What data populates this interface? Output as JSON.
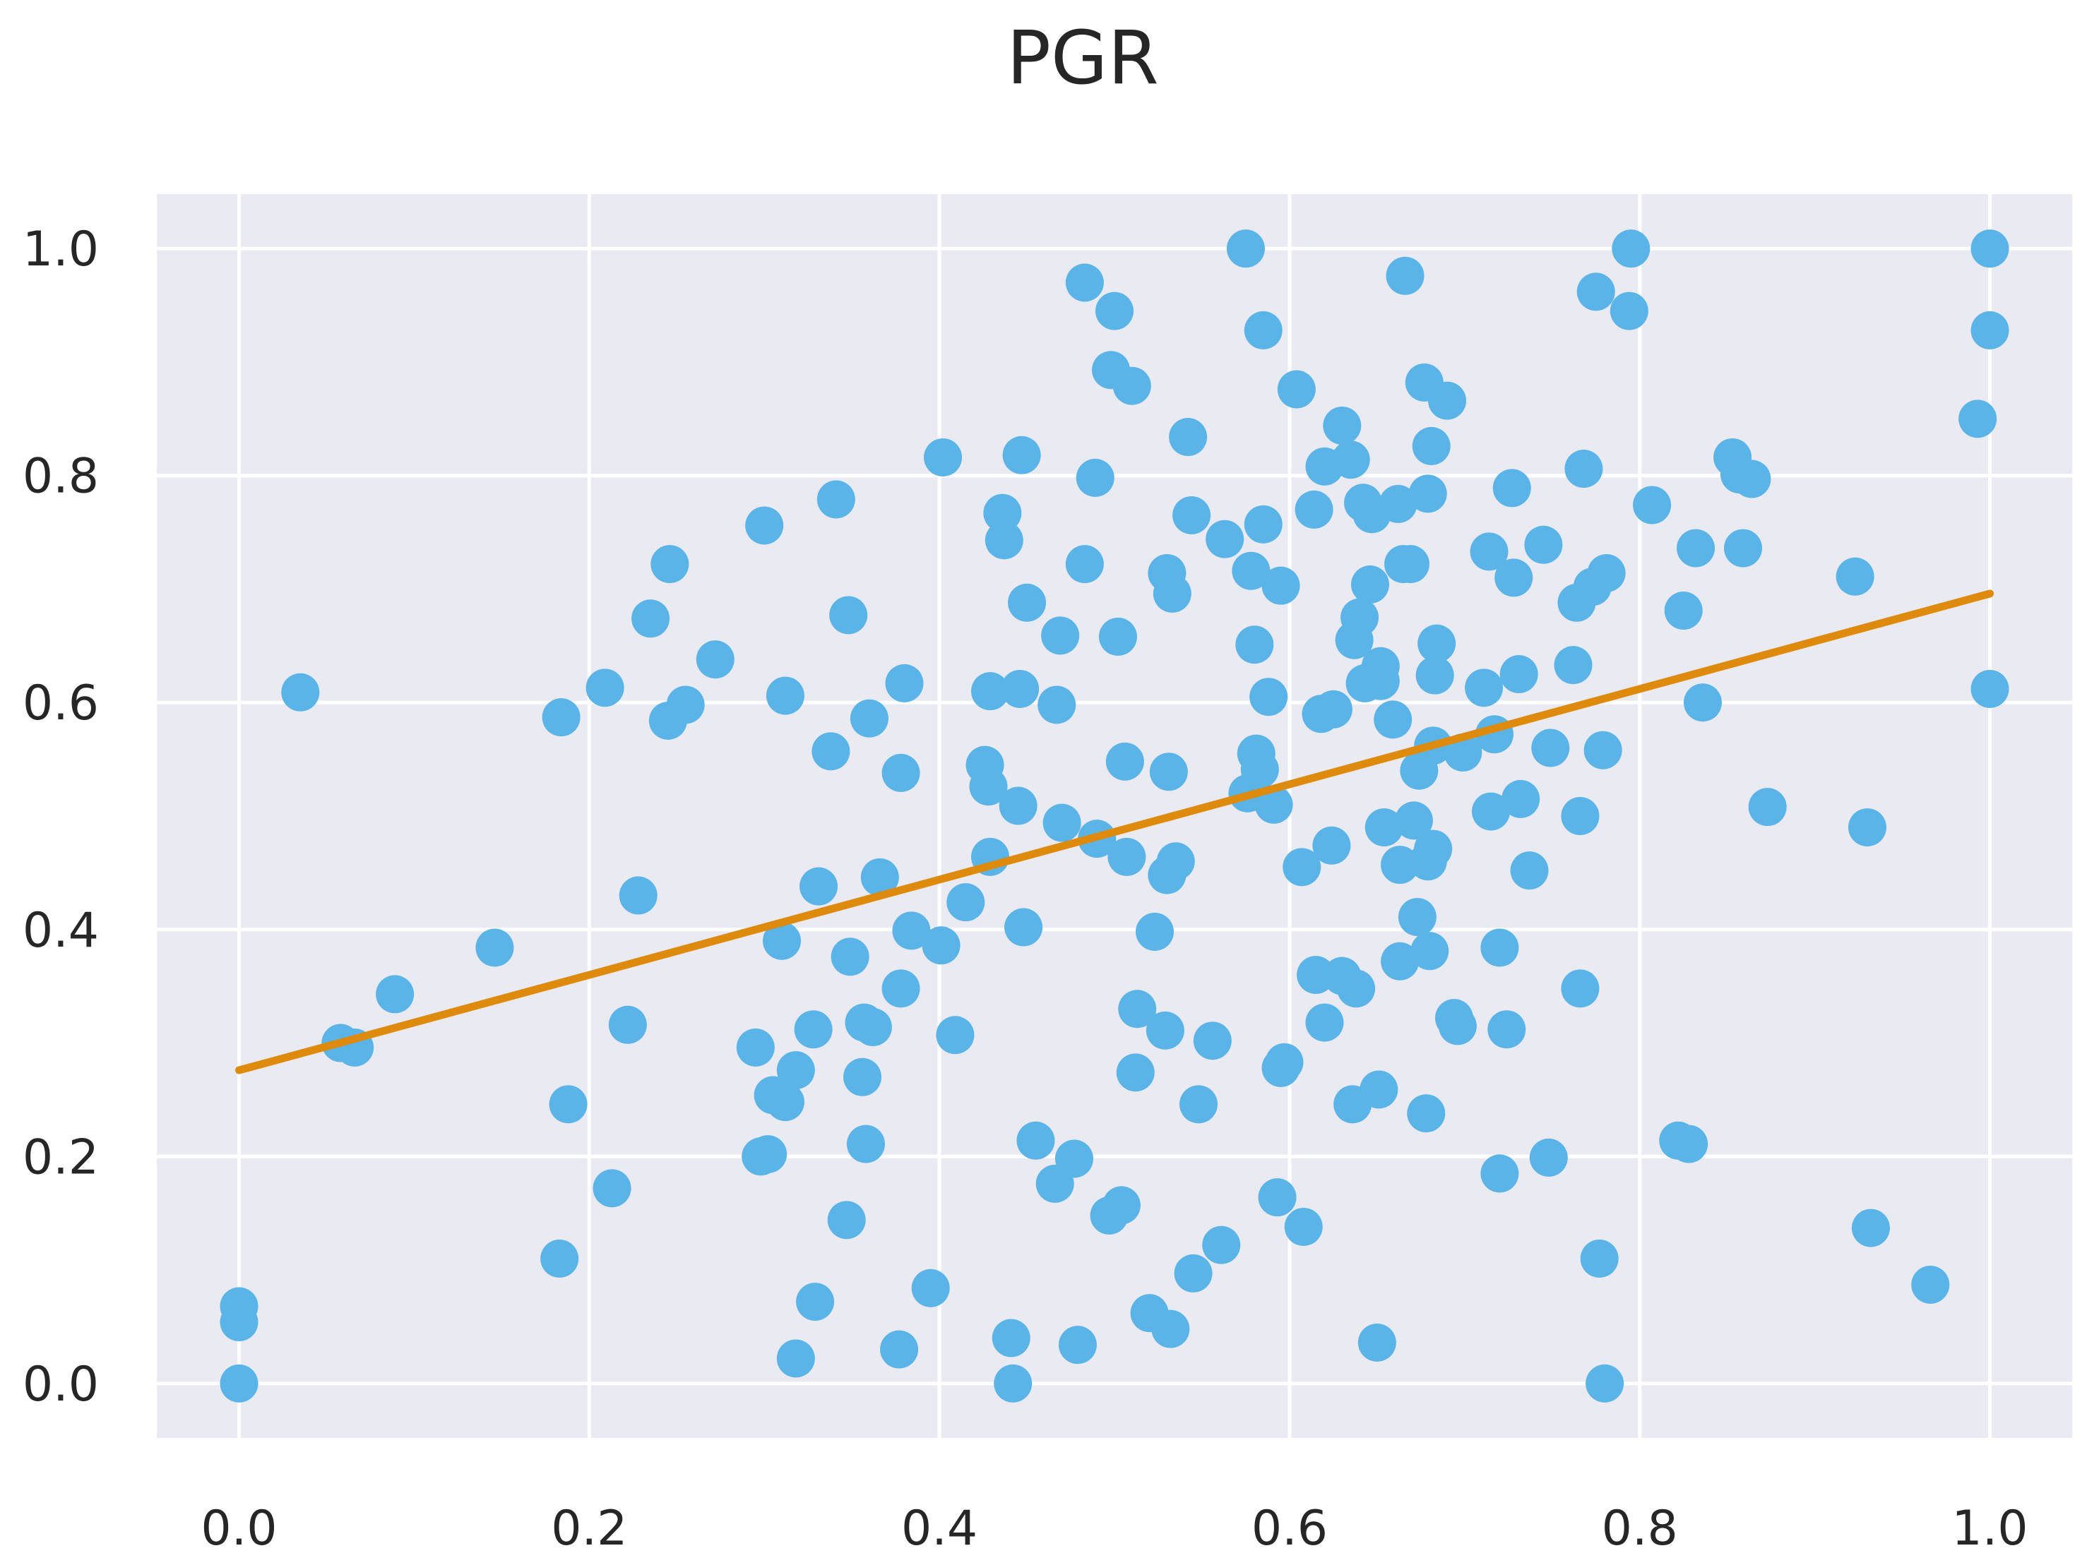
{
  "chart_data": {
    "type": "scatter",
    "title": "PGR",
    "xlabel": "",
    "ylabel": "",
    "xlim": [
      -0.047,
      1.047
    ],
    "ylim": [
      -0.048,
      1.048
    ],
    "xticks": [
      0.0,
      0.2,
      0.4,
      0.6,
      0.8,
      1.0
    ],
    "yticks": [
      0.0,
      0.2,
      0.4,
      0.6,
      0.8,
      1.0
    ],
    "xtick_labels": [
      "0.0",
      "0.2",
      "0.4",
      "0.6",
      "0.8",
      "1.0"
    ],
    "ytick_labels": [
      "0.0",
      "0.2",
      "0.4",
      "0.6",
      "0.8",
      "1.0"
    ],
    "grid": true,
    "background": "#EAEAF2",
    "point_color": "#5AB4E8",
    "line_color": "#DE8A0C",
    "trend_line": {
      "x": [
        0.0,
        1.0
      ],
      "y": [
        0.276,
        0.696
      ]
    },
    "points": [
      [
        0.0,
        0.0
      ],
      [
        0.0,
        0.054
      ],
      [
        0.0,
        0.068
      ],
      [
        0.035,
        0.609
      ],
      [
        0.058,
        0.3
      ],
      [
        0.066,
        0.296
      ],
      [
        0.089,
        0.343
      ],
      [
        0.146,
        0.384
      ],
      [
        0.183,
        0.11
      ],
      [
        0.184,
        0.587
      ],
      [
        0.188,
        0.246
      ],
      [
        0.209,
        0.613
      ],
      [
        0.213,
        0.172
      ],
      [
        0.222,
        0.316
      ],
      [
        0.228,
        0.43
      ],
      [
        0.235,
        0.674
      ],
      [
        0.245,
        0.584
      ],
      [
        0.246,
        0.722
      ],
      [
        0.255,
        0.598
      ],
      [
        0.272,
        0.638
      ],
      [
        0.295,
        0.296
      ],
      [
        0.298,
        0.2
      ],
      [
        0.3,
        0.756
      ],
      [
        0.302,
        0.202
      ],
      [
        0.305,
        0.254
      ],
      [
        0.31,
        0.39
      ],
      [
        0.312,
        0.248
      ],
      [
        0.312,
        0.606
      ],
      [
        0.318,
        0.276
      ],
      [
        0.318,
        0.022
      ],
      [
        0.328,
        0.312
      ],
      [
        0.329,
        0.072
      ],
      [
        0.331,
        0.438
      ],
      [
        0.338,
        0.557
      ],
      [
        0.341,
        0.779
      ],
      [
        0.347,
        0.144
      ],
      [
        0.348,
        0.677
      ],
      [
        0.349,
        0.376
      ],
      [
        0.356,
        0.27
      ],
      [
        0.357,
        0.318
      ],
      [
        0.358,
        0.211
      ],
      [
        0.36,
        0.586
      ],
      [
        0.362,
        0.314
      ],
      [
        0.366,
        0.446
      ],
      [
        0.377,
        0.03
      ],
      [
        0.378,
        0.348
      ],
      [
        0.378,
        0.538
      ],
      [
        0.38,
        0.617
      ],
      [
        0.384,
        0.399
      ],
      [
        0.395,
        0.084
      ],
      [
        0.401,
        0.386
      ],
      [
        0.402,
        0.816
      ],
      [
        0.409,
        0.307
      ],
      [
        0.415,
        0.424
      ],
      [
        0.426,
        0.545
      ],
      [
        0.428,
        0.526
      ],
      [
        0.429,
        0.61
      ],
      [
        0.429,
        0.464
      ],
      [
        0.436,
        0.767
      ],
      [
        0.437,
        0.743
      ],
      [
        0.441,
        0.04
      ],
      [
        0.442,
        0.0
      ],
      [
        0.445,
        0.509
      ],
      [
        0.446,
        0.612
      ],
      [
        0.447,
        0.818
      ],
      [
        0.448,
        0.402
      ],
      [
        0.45,
        0.688
      ],
      [
        0.455,
        0.214
      ],
      [
        0.466,
        0.176
      ],
      [
        0.467,
        0.598
      ],
      [
        0.469,
        0.659
      ],
      [
        0.47,
        0.494
      ],
      [
        0.477,
        0.198
      ],
      [
        0.479,
        0.034
      ],
      [
        0.483,
        0.97
      ],
      [
        0.483,
        0.722
      ],
      [
        0.489,
        0.798
      ],
      [
        0.49,
        0.48
      ],
      [
        0.497,
        0.148
      ],
      [
        0.498,
        0.893
      ],
      [
        0.5,
        0.945
      ],
      [
        0.502,
        0.658
      ],
      [
        0.504,
        0.157
      ],
      [
        0.506,
        0.548
      ],
      [
        0.507,
        0.464
      ],
      [
        0.51,
        0.879
      ],
      [
        0.512,
        0.274
      ],
      [
        0.513,
        0.33
      ],
      [
        0.52,
        0.062
      ],
      [
        0.523,
        0.398
      ],
      [
        0.529,
        0.311
      ],
      [
        0.53,
        0.714
      ],
      [
        0.53,
        0.448
      ],
      [
        0.531,
        0.539
      ],
      [
        0.532,
        0.048
      ],
      [
        0.533,
        0.696
      ],
      [
        0.535,
        0.46
      ],
      [
        0.542,
        0.834
      ],
      [
        0.544,
        0.765
      ],
      [
        0.545,
        0.097
      ],
      [
        0.548,
        0.246
      ],
      [
        0.556,
        0.302
      ],
      [
        0.561,
        0.122
      ],
      [
        0.563,
        0.744
      ],
      [
        0.575,
        1.0
      ],
      [
        0.576,
        0.52
      ],
      [
        0.578,
        0.716
      ],
      [
        0.58,
        0.651
      ],
      [
        0.581,
        0.555
      ],
      [
        0.583,
        0.541
      ],
      [
        0.585,
        0.757
      ],
      [
        0.585,
        0.928
      ],
      [
        0.588,
        0.605
      ],
      [
        0.591,
        0.51
      ],
      [
        0.593,
        0.164
      ],
      [
        0.595,
        0.703
      ],
      [
        0.595,
        0.278
      ],
      [
        0.597,
        0.283
      ],
      [
        0.604,
        0.876
      ],
      [
        0.607,
        0.455
      ],
      [
        0.608,
        0.138
      ],
      [
        0.614,
        0.77
      ],
      [
        0.615,
        0.36
      ],
      [
        0.618,
        0.59
      ],
      [
        0.62,
        0.808
      ],
      [
        0.62,
        0.318
      ],
      [
        0.624,
        0.474
      ],
      [
        0.625,
        0.594
      ],
      [
        0.63,
        0.844
      ],
      [
        0.63,
        0.359
      ],
      [
        0.635,
        0.814
      ],
      [
        0.636,
        0.246
      ],
      [
        0.637,
        0.655
      ],
      [
        0.638,
        0.348
      ],
      [
        0.64,
        0.675
      ],
      [
        0.642,
        0.776
      ],
      [
        0.643,
        0.617
      ],
      [
        0.646,
        0.704
      ],
      [
        0.647,
        0.766
      ],
      [
        0.65,
        0.036
      ],
      [
        0.651,
        0.259
      ],
      [
        0.652,
        0.632
      ],
      [
        0.652,
        0.619
      ],
      [
        0.654,
        0.49
      ],
      [
        0.659,
        0.585
      ],
      [
        0.662,
        0.775
      ],
      [
        0.663,
        0.457
      ],
      [
        0.663,
        0.372
      ],
      [
        0.665,
        0.722
      ],
      [
        0.666,
        0.976
      ],
      [
        0.669,
        0.722
      ],
      [
        0.671,
        0.496
      ],
      [
        0.673,
        0.411
      ],
      [
        0.674,
        0.54
      ],
      [
        0.677,
        0.882
      ],
      [
        0.678,
        0.238
      ],
      [
        0.679,
        0.46
      ],
      [
        0.679,
        0.784
      ],
      [
        0.68,
        0.381
      ],
      [
        0.681,
        0.826
      ],
      [
        0.682,
        0.471
      ],
      [
        0.682,
        0.562
      ],
      [
        0.683,
        0.624
      ],
      [
        0.684,
        0.652
      ],
      [
        0.69,
        0.866
      ],
      [
        0.694,
        0.322
      ],
      [
        0.696,
        0.315
      ],
      [
        0.699,
        0.556
      ],
      [
        0.711,
        0.613
      ],
      [
        0.714,
        0.733
      ],
      [
        0.715,
        0.504
      ],
      [
        0.717,
        0.572
      ],
      [
        0.72,
        0.384
      ],
      [
        0.72,
        0.185
      ],
      [
        0.724,
        0.312
      ],
      [
        0.727,
        0.789
      ],
      [
        0.728,
        0.71
      ],
      [
        0.731,
        0.625
      ],
      [
        0.732,
        0.515
      ],
      [
        0.737,
        0.452
      ],
      [
        0.745,
        0.739
      ],
      [
        0.748,
        0.199
      ],
      [
        0.749,
        0.56
      ],
      [
        0.762,
        0.633
      ],
      [
        0.764,
        0.688
      ],
      [
        0.766,
        0.348
      ],
      [
        0.766,
        0.5
      ],
      [
        0.768,
        0.806
      ],
      [
        0.773,
        0.702
      ],
      [
        0.775,
        0.962
      ],
      [
        0.777,
        0.11
      ],
      [
        0.779,
        0.558
      ],
      [
        0.78,
        0.0
      ],
      [
        0.781,
        0.714
      ],
      [
        0.794,
        0.945
      ],
      [
        0.795,
        1.0
      ],
      [
        0.807,
        0.774
      ],
      [
        0.822,
        0.214
      ],
      [
        0.825,
        0.681
      ],
      [
        0.828,
        0.211
      ],
      [
        0.832,
        0.736
      ],
      [
        0.836,
        0.6
      ],
      [
        0.853,
        0.816
      ],
      [
        0.857,
        0.801
      ],
      [
        0.859,
        0.736
      ],
      [
        0.864,
        0.797
      ],
      [
        0.873,
        0.508
      ],
      [
        0.923,
        0.711
      ],
      [
        0.93,
        0.49
      ],
      [
        0.932,
        0.137
      ],
      [
        0.966,
        0.087
      ],
      [
        0.993,
        0.85
      ],
      [
        1.0,
        1.0
      ],
      [
        1.0,
        0.928
      ],
      [
        1.0,
        0.612
      ]
    ]
  }
}
